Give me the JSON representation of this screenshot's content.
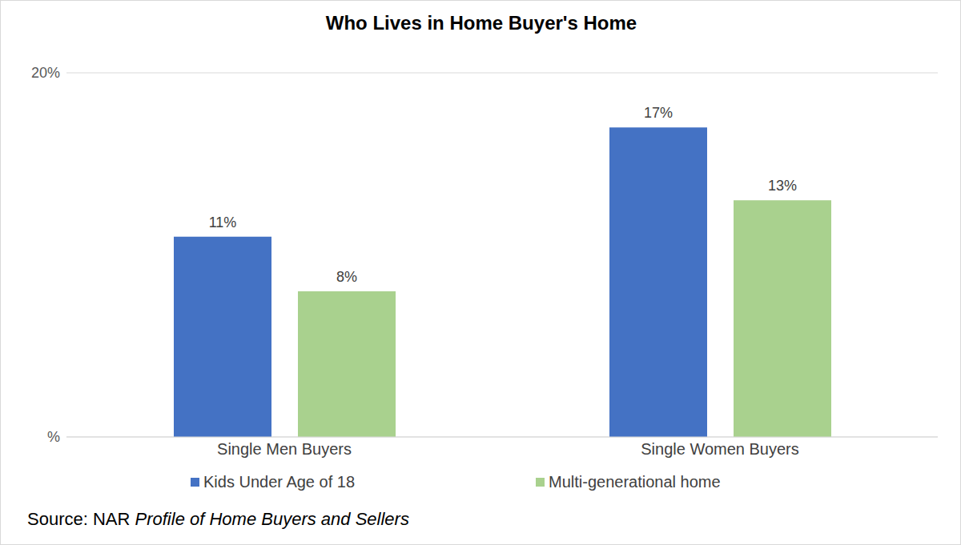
{
  "chart_data": {
    "type": "bar",
    "title": "Who Lives in Home Buyer's Home",
    "categories": [
      "Single Men Buyers",
      "Single Women Buyers"
    ],
    "series": [
      {
        "name": "Kids Under Age of 18",
        "color": "#4472c4",
        "values": [
          11,
          17
        ],
        "value_labels": [
          "11%",
          "17%"
        ]
      },
      {
        "name": "Multi-generational home",
        "color": "#a9d18e",
        "values": [
          8,
          13
        ],
        "value_labels": [
          "8%",
          "13%"
        ]
      }
    ],
    "ylim": [
      0,
      20
    ],
    "yticks": [
      {
        "value": 0,
        "label": "%"
      },
      {
        "value": 20,
        "label": "20%"
      }
    ],
    "grid": true,
    "data_labels": true,
    "legend": "bottom",
    "source": "Source: NAR",
    "source_publication": "Profile of Home Buyers and Sellers"
  }
}
